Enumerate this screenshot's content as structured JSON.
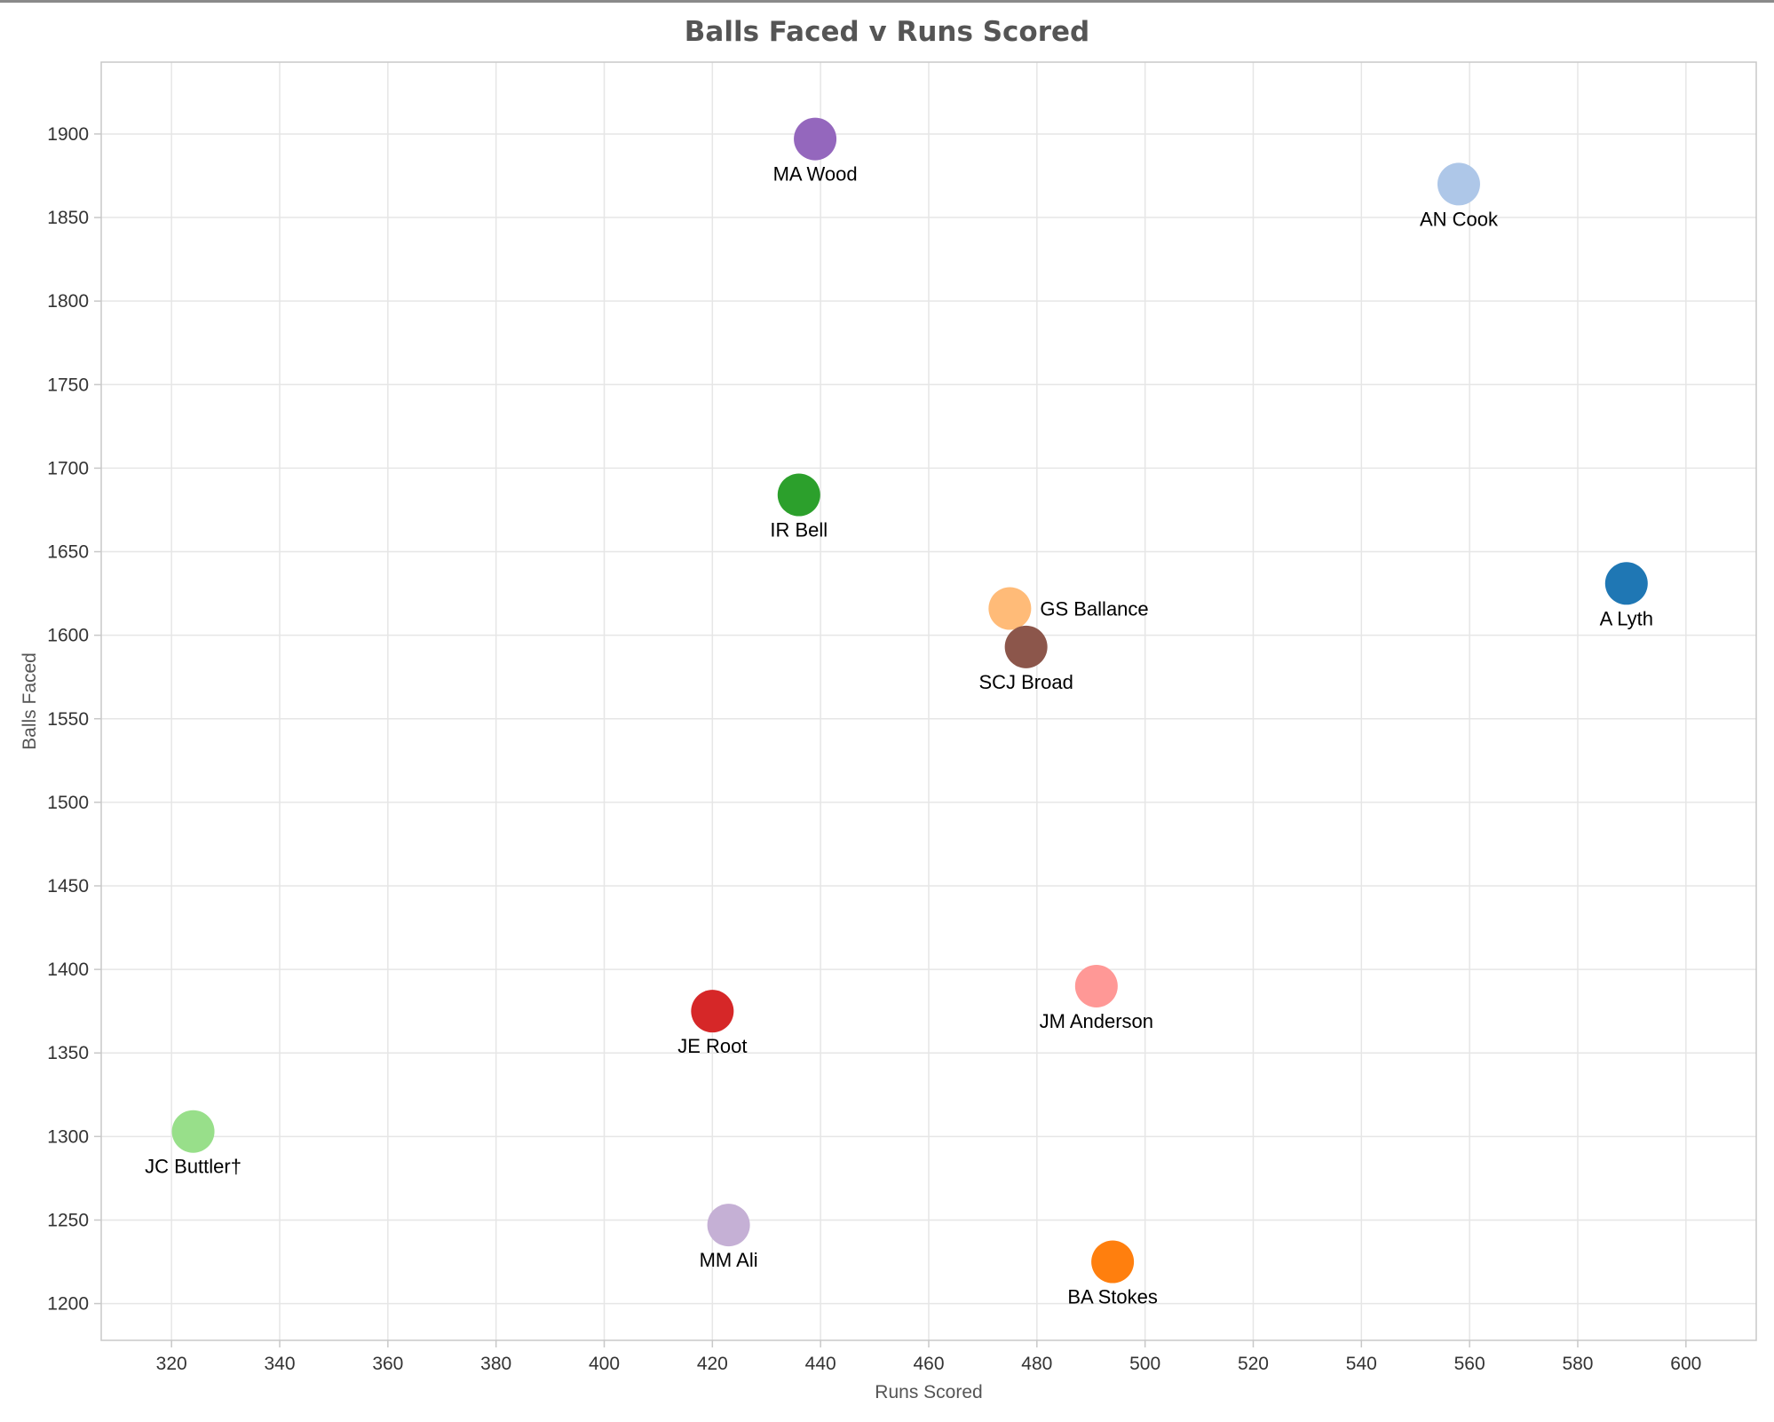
{
  "chart_data": {
    "type": "scatter",
    "title": "Balls Faced v Runs Scored",
    "xlabel": "Runs Scored",
    "ylabel": "Balls Faced",
    "xlim": [
      307,
      613
    ],
    "ylim": [
      1178,
      1943
    ],
    "xticks": [
      320,
      340,
      360,
      380,
      400,
      420,
      440,
      460,
      480,
      500,
      520,
      540,
      560,
      580,
      600
    ],
    "yticks": [
      1200,
      1250,
      1300,
      1350,
      1400,
      1450,
      1500,
      1550,
      1600,
      1650,
      1700,
      1750,
      1800,
      1850,
      1900
    ],
    "grid": true,
    "legend": "none",
    "points": [
      {
        "label": "MA Wood",
        "x": 439,
        "y": 1897,
        "color": "#9467bd",
        "label_pos": "below"
      },
      {
        "label": "AN Cook",
        "x": 558,
        "y": 1870,
        "color": "#aec7e8",
        "label_pos": "below"
      },
      {
        "label": "IR Bell",
        "x": 436,
        "y": 1684,
        "color": "#2ca02c",
        "label_pos": "below"
      },
      {
        "label": "A Lyth",
        "x": 589,
        "y": 1631,
        "color": "#1f77b4",
        "label_pos": "below"
      },
      {
        "label": "GS Ballance",
        "x": 475,
        "y": 1616,
        "color": "#ffbb78",
        "label_pos": "right"
      },
      {
        "label": "SCJ Broad",
        "x": 478,
        "y": 1593,
        "color": "#8c564b",
        "label_pos": "below"
      },
      {
        "label": "JM Anderson",
        "x": 491,
        "y": 1390,
        "color": "#ff9896",
        "label_pos": "below"
      },
      {
        "label": "JE Root",
        "x": 420,
        "y": 1375,
        "color": "#d62728",
        "label_pos": "below"
      },
      {
        "label": "JC Buttler†",
        "x": 324,
        "y": 1303,
        "color": "#98df8a",
        "label_pos": "below"
      },
      {
        "label": "MM Ali",
        "x": 423,
        "y": 1247,
        "color": "#c5b0d5",
        "label_pos": "below"
      },
      {
        "label": "BA Stokes",
        "x": 494,
        "y": 1225,
        "color": "#ff7f0e",
        "label_pos": "below"
      }
    ]
  }
}
